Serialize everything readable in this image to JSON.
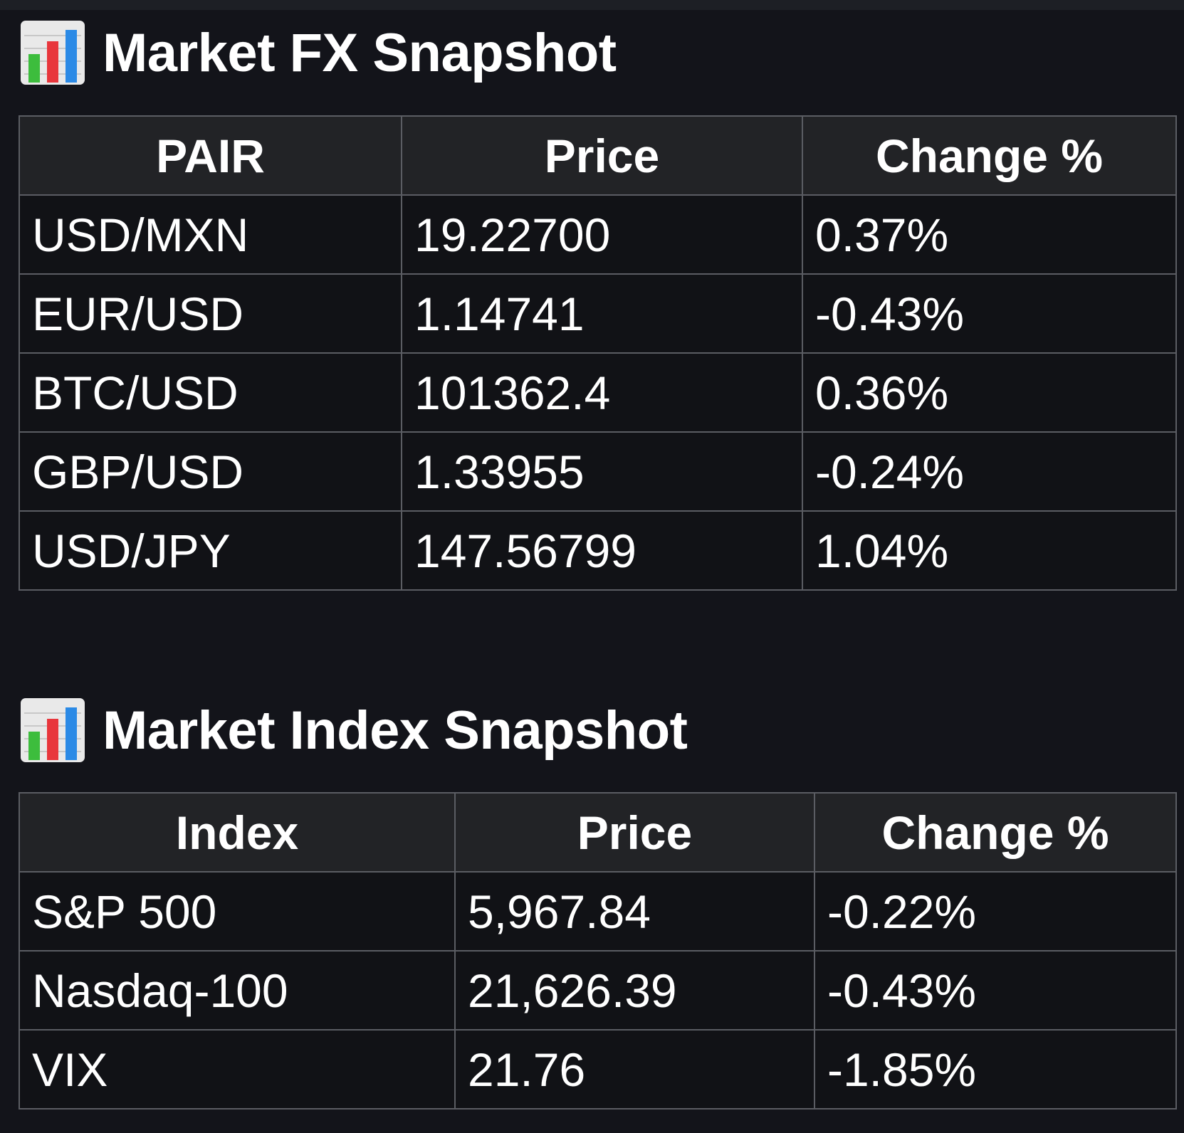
{
  "colors": {
    "background": "#13141a",
    "header_background": "#222326",
    "border": "#5b5d63",
    "positive": "#5cb546",
    "negative": "#ef5a3a"
  },
  "fx": {
    "icon": "bar-chart-icon",
    "title": "Market FX Snapshot",
    "columns": [
      "PAIR",
      "Price",
      "Change %"
    ],
    "rows": [
      {
        "pair": "USD/MXN",
        "price": "19.22700",
        "change": "0.37%",
        "direction": "up"
      },
      {
        "pair": "EUR/USD",
        "price": "1.14741",
        "change": "-0.43%",
        "direction": "down"
      },
      {
        "pair": "BTC/USD",
        "price": "101362.4",
        "change": "0.36%",
        "direction": "up"
      },
      {
        "pair": "GBP/USD",
        "price": "1.33955",
        "change": "-0.24%",
        "direction": "down"
      },
      {
        "pair": "USD/JPY",
        "price": "147.56799",
        "change": "1.04%",
        "direction": "up"
      }
    ]
  },
  "index": {
    "icon": "bar-chart-icon",
    "title": "Market Index Snapshot",
    "columns": [
      "Index",
      "Price",
      "Change %"
    ],
    "rows": [
      {
        "name": "S&P 500",
        "price": "5,967.84",
        "change": "-0.22%",
        "direction": "down"
      },
      {
        "name": "Nasdaq-100",
        "price": "21,626.39",
        "change": "-0.43%",
        "direction": "down"
      },
      {
        "name": "VIX",
        "price": "21.76",
        "change": "-1.85%",
        "direction": "down"
      }
    ]
  }
}
